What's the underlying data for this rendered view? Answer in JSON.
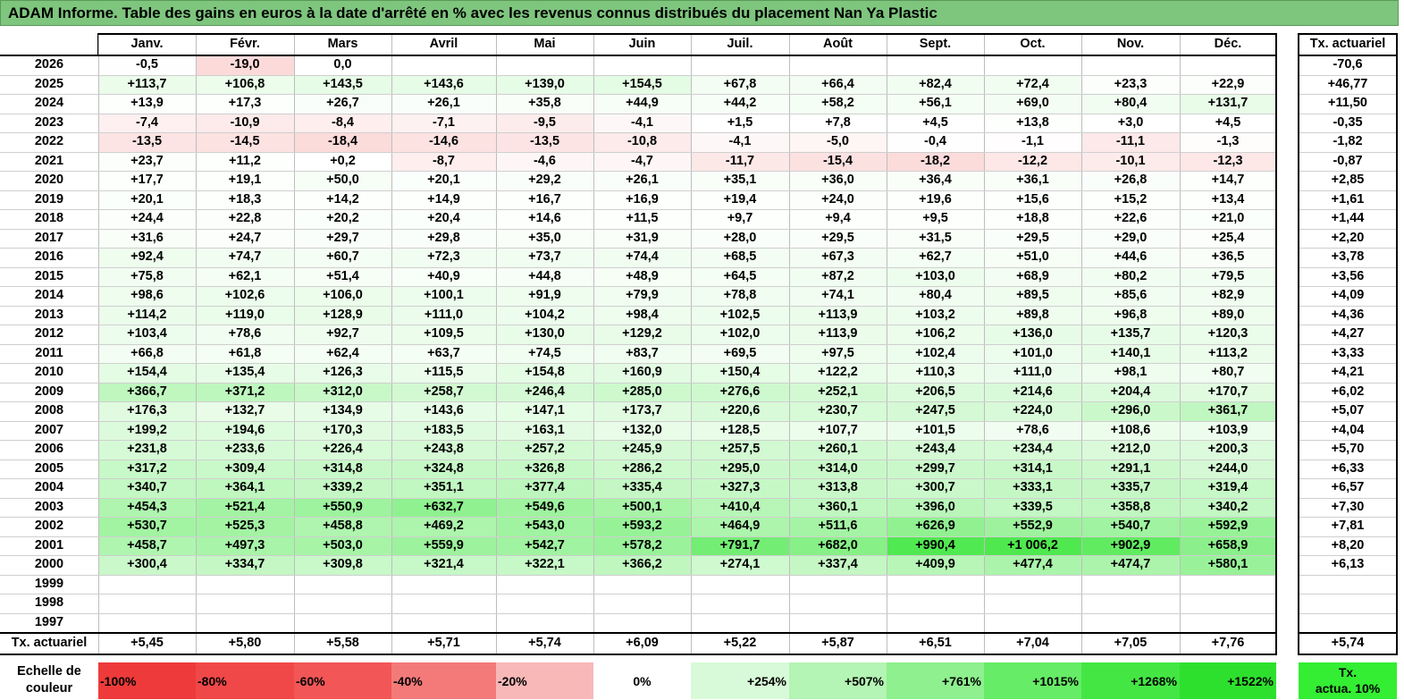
{
  "title": "ADAM Informe. Table des gains en euros à la date d'arrêté en % avec les revenus connus distribués du placement Nan Ya Plastic",
  "chart_data": {
    "type": "heatmap",
    "columns": [
      "Janv.",
      "Févr.",
      "Mars",
      "Avril",
      "Mai",
      "Juin",
      "Juil.",
      "Août",
      "Sept.",
      "Oct.",
      "Nov.",
      "Déc."
    ],
    "rate_header": "Tx. actuariel",
    "rows": [
      {
        "year": "2026",
        "values": [
          "-0,5",
          "-19,0",
          "0,0",
          "",
          "",
          "",
          "",
          "",
          "",
          "",
          "",
          ""
        ],
        "rate": "-70,6"
      },
      {
        "year": "2025",
        "values": [
          "+113,7",
          "+106,8",
          "+143,5",
          "+143,6",
          "+139,0",
          "+154,5",
          "+67,8",
          "+66,4",
          "+82,4",
          "+72,4",
          "+23,3",
          "+22,9"
        ],
        "rate": "+46,77"
      },
      {
        "year": "2024",
        "values": [
          "+13,9",
          "+17,3",
          "+26,7",
          "+26,1",
          "+35,8",
          "+44,9",
          "+44,2",
          "+58,2",
          "+56,1",
          "+69,0",
          "+80,4",
          "+131,7"
        ],
        "rate": "+11,50"
      },
      {
        "year": "2023",
        "values": [
          "-7,4",
          "-10,9",
          "-8,4",
          "-7,1",
          "-9,5",
          "-4,1",
          "+1,5",
          "+7,8",
          "+4,5",
          "+13,8",
          "+3,0",
          "+4,5"
        ],
        "rate": "-0,35"
      },
      {
        "year": "2022",
        "values": [
          "-13,5",
          "-14,5",
          "-18,4",
          "-14,6",
          "-13,5",
          "-10,8",
          "-4,1",
          "-5,0",
          "-0,4",
          "-1,1",
          "-11,1",
          "-1,3"
        ],
        "rate": "-1,82"
      },
      {
        "year": "2021",
        "values": [
          "+23,7",
          "+11,2",
          "+0,2",
          "-8,7",
          "-4,6",
          "-4,7",
          "-11,7",
          "-15,4",
          "-18,2",
          "-12,2",
          "-10,1",
          "-12,3"
        ],
        "rate": "-0,87"
      },
      {
        "year": "2020",
        "values": [
          "+17,7",
          "+19,1",
          "+50,0",
          "+20,1",
          "+29,2",
          "+26,1",
          "+35,1",
          "+36,0",
          "+36,4",
          "+36,1",
          "+26,8",
          "+14,7"
        ],
        "rate": "+2,85"
      },
      {
        "year": "2019",
        "values": [
          "+20,1",
          "+18,3",
          "+14,2",
          "+14,9",
          "+16,7",
          "+16,9",
          "+19,4",
          "+24,0",
          "+19,6",
          "+15,6",
          "+15,2",
          "+13,4"
        ],
        "rate": "+1,61"
      },
      {
        "year": "2018",
        "values": [
          "+24,4",
          "+22,8",
          "+20,2",
          "+20,4",
          "+14,6",
          "+11,5",
          "+9,7",
          "+9,4",
          "+9,5",
          "+18,8",
          "+22,6",
          "+21,0"
        ],
        "rate": "+1,44"
      },
      {
        "year": "2017",
        "values": [
          "+31,6",
          "+24,7",
          "+29,7",
          "+29,8",
          "+35,0",
          "+31,9",
          "+28,0",
          "+29,5",
          "+31,5",
          "+29,5",
          "+29,0",
          "+25,4"
        ],
        "rate": "+2,20"
      },
      {
        "year": "2016",
        "values": [
          "+92,4",
          "+74,7",
          "+60,7",
          "+72,3",
          "+73,7",
          "+74,4",
          "+68,5",
          "+67,3",
          "+62,7",
          "+51,0",
          "+44,6",
          "+36,5"
        ],
        "rate": "+3,78"
      },
      {
        "year": "2015",
        "values": [
          "+75,8",
          "+62,1",
          "+51,4",
          "+40,9",
          "+44,8",
          "+48,9",
          "+64,5",
          "+87,2",
          "+103,0",
          "+68,9",
          "+80,2",
          "+79,5"
        ],
        "rate": "+3,56"
      },
      {
        "year": "2014",
        "values": [
          "+98,6",
          "+102,6",
          "+106,0",
          "+100,1",
          "+91,9",
          "+79,9",
          "+78,8",
          "+74,1",
          "+80,4",
          "+89,5",
          "+85,6",
          "+82,9"
        ],
        "rate": "+4,09"
      },
      {
        "year": "2013",
        "values": [
          "+114,2",
          "+119,0",
          "+128,9",
          "+111,0",
          "+104,2",
          "+98,4",
          "+102,5",
          "+113,9",
          "+103,2",
          "+89,8",
          "+96,8",
          "+89,0"
        ],
        "rate": "+4,36"
      },
      {
        "year": "2012",
        "values": [
          "+103,4",
          "+78,6",
          "+92,7",
          "+109,5",
          "+130,0",
          "+129,2",
          "+102,0",
          "+113,9",
          "+106,2",
          "+136,0",
          "+135,7",
          "+120,3"
        ],
        "rate": "+4,27"
      },
      {
        "year": "2011",
        "values": [
          "+66,8",
          "+61,8",
          "+62,4",
          "+63,7",
          "+74,5",
          "+83,7",
          "+69,5",
          "+97,5",
          "+102,4",
          "+101,0",
          "+140,1",
          "+113,2"
        ],
        "rate": "+3,33"
      },
      {
        "year": "2010",
        "values": [
          "+154,4",
          "+135,4",
          "+126,3",
          "+115,5",
          "+154,8",
          "+160,9",
          "+150,4",
          "+122,2",
          "+110,3",
          "+111,0",
          "+98,1",
          "+80,7"
        ],
        "rate": "+4,21"
      },
      {
        "year": "2009",
        "values": [
          "+366,7",
          "+371,2",
          "+312,0",
          "+258,7",
          "+246,4",
          "+285,0",
          "+276,6",
          "+252,1",
          "+206,5",
          "+214,6",
          "+204,4",
          "+170,7"
        ],
        "rate": "+6,02"
      },
      {
        "year": "2008",
        "values": [
          "+176,3",
          "+132,7",
          "+134,9",
          "+143,6",
          "+147,1",
          "+173,7",
          "+220,6",
          "+230,7",
          "+247,5",
          "+224,0",
          "+296,0",
          "+361,7"
        ],
        "rate": "+5,07"
      },
      {
        "year": "2007",
        "values": [
          "+199,2",
          "+194,6",
          "+170,3",
          "+183,5",
          "+163,1",
          "+132,0",
          "+128,5",
          "+107,7",
          "+101,5",
          "+78,6",
          "+108,6",
          "+103,9"
        ],
        "rate": "+4,04"
      },
      {
        "year": "2006",
        "values": [
          "+231,8",
          "+233,6",
          "+226,4",
          "+243,8",
          "+257,2",
          "+245,9",
          "+257,5",
          "+260,1",
          "+243,4",
          "+234,4",
          "+212,0",
          "+200,3"
        ],
        "rate": "+5,70"
      },
      {
        "year": "2005",
        "values": [
          "+317,2",
          "+309,4",
          "+314,8",
          "+324,8",
          "+326,8",
          "+286,2",
          "+295,0",
          "+314,0",
          "+299,7",
          "+314,1",
          "+291,1",
          "+244,0"
        ],
        "rate": "+6,33"
      },
      {
        "year": "2004",
        "values": [
          "+340,7",
          "+364,1",
          "+339,2",
          "+351,1",
          "+377,4",
          "+335,4",
          "+327,3",
          "+313,8",
          "+300,7",
          "+333,1",
          "+335,7",
          "+319,4"
        ],
        "rate": "+6,57"
      },
      {
        "year": "2003",
        "values": [
          "+454,3",
          "+521,4",
          "+550,9",
          "+632,7",
          "+549,6",
          "+500,1",
          "+410,4",
          "+360,1",
          "+396,0",
          "+339,5",
          "+358,8",
          "+340,2"
        ],
        "rate": "+7,30"
      },
      {
        "year": "2002",
        "values": [
          "+530,7",
          "+525,3",
          "+458,8",
          "+469,2",
          "+543,0",
          "+593,2",
          "+464,9",
          "+511,6",
          "+626,9",
          "+552,9",
          "+540,7",
          "+592,9"
        ],
        "rate": "+7,81"
      },
      {
        "year": "2001",
        "values": [
          "+458,7",
          "+497,3",
          "+503,0",
          "+559,9",
          "+542,7",
          "+578,2",
          "+791,7",
          "+682,0",
          "+990,4",
          "+1 006,2",
          "+902,9",
          "+658,9"
        ],
        "rate": "+8,20"
      },
      {
        "year": "2000",
        "values": [
          "+300,4",
          "+334,7",
          "+309,8",
          "+321,4",
          "+322,1",
          "+366,2",
          "+274,1",
          "+337,4",
          "+409,9",
          "+477,4",
          "+474,7",
          "+580,1"
        ],
        "rate": "+6,13"
      },
      {
        "year": "1999",
        "values": [
          "",
          "",
          "",
          "",
          "",
          "",
          "",
          "",
          "",
          "",
          "",
          ""
        ],
        "rate": ""
      },
      {
        "year": "1998",
        "values": [
          "",
          "",
          "",
          "",
          "",
          "",
          "",
          "",
          "",
          "",
          "",
          ""
        ],
        "rate": ""
      },
      {
        "year": "1997",
        "values": [
          "",
          "",
          "",
          "",
          "",
          "",
          "",
          "",
          "",
          "",
          "",
          ""
        ],
        "rate": ""
      }
    ],
    "footer": {
      "label": "Tx. actuariel",
      "values": [
        "+5,45",
        "+5,80",
        "+5,58",
        "+5,71",
        "+5,74",
        "+6,09",
        "+5,22",
        "+5,87",
        "+6,51",
        "+7,04",
        "+7,05",
        "+7,76"
      ],
      "rate": "+5,74"
    },
    "color_scale": {
      "label_line1": "Echelle de",
      "label_line2": "couleur",
      "stops": [
        {
          "label": "-100%",
          "color": "#ee3a3a"
        },
        {
          "label": "-80%",
          "color": "#f04848"
        },
        {
          "label": "-60%",
          "color": "#f25656"
        },
        {
          "label": "-40%",
          "color": "#f47a7a"
        },
        {
          "label": "-20%",
          "color": "#f8b8b8"
        },
        {
          "label": "0%",
          "color": "#ffffff"
        },
        {
          "label": "+254%",
          "color": "#d8fad8"
        },
        {
          "label": "+507%",
          "color": "#b4f4b4"
        },
        {
          "label": "+761%",
          "color": "#8ef08e"
        },
        {
          "label": "+1015%",
          "color": "#66ec66"
        },
        {
          "label": "+1268%",
          "color": "#44e644"
        },
        {
          "label": "+1522%",
          "color": "#2ee02e"
        }
      ],
      "rate_legend_line1": "Tx.",
      "rate_legend_line2": "actua. 10%"
    }
  }
}
